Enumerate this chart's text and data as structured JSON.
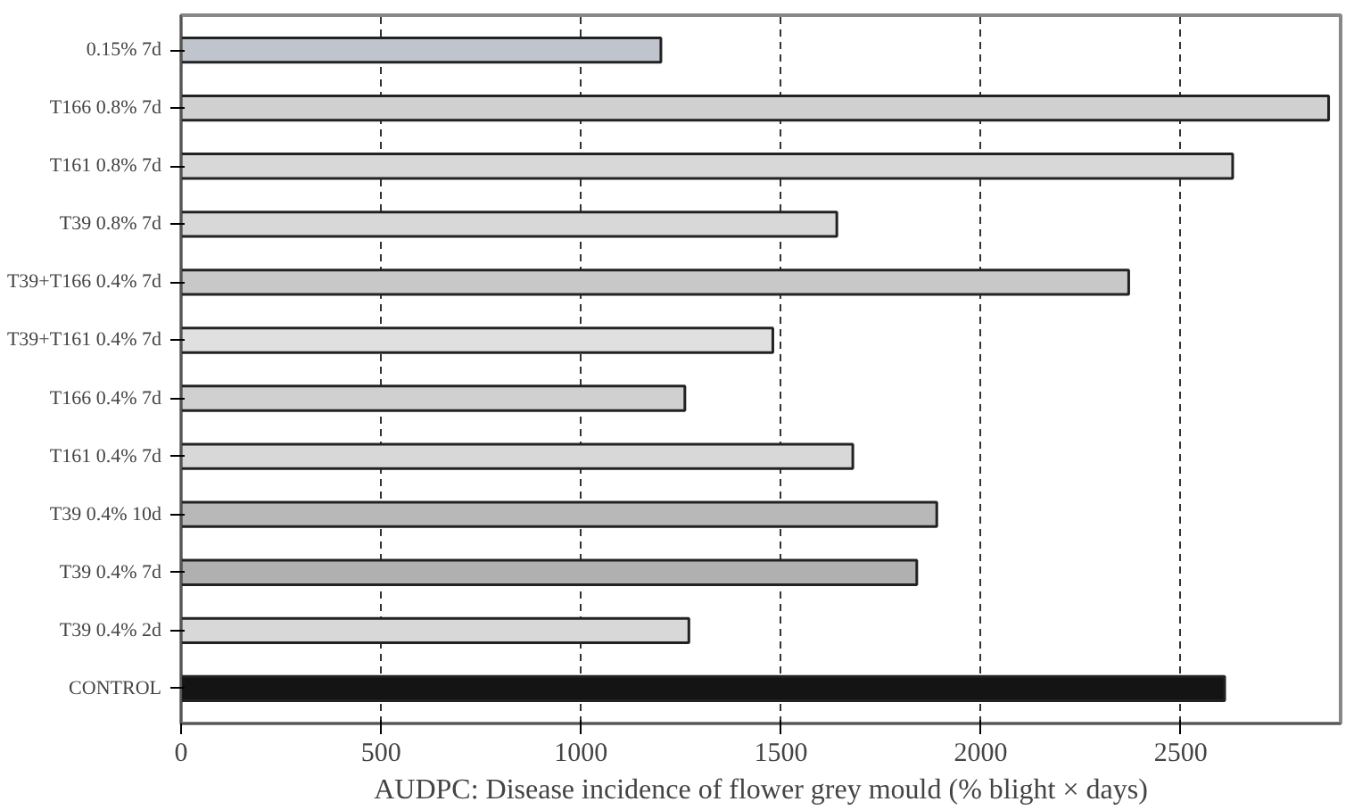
{
  "chart_data": {
    "type": "bar",
    "orientation": "horizontal",
    "xlabel": "AUDPC: Disease incidence of flower grey mould (% blight × days)",
    "categories": [
      "0.15% 7d",
      "T166 0.8% 7d",
      "T161 0.8% 7d",
      "T39 0.8% 7d",
      "T39+T166 0.4% 7d",
      "T39+T161 0.4% 7d",
      "T166 0.4% 7d",
      "T161 0.4% 7d",
      "T39 0.4% 10d",
      "T39 0.4% 7d",
      "T39 0.4% 2d",
      "CONTROL"
    ],
    "values": [
      1200,
      2870,
      2630,
      1640,
      2370,
      1480,
      1260,
      1680,
      1890,
      1840,
      1270,
      2610
    ],
    "colors": [
      "#c0c4cc",
      "#d0d0d0",
      "#d8d8d8",
      "#d8d8d8",
      "#c8c8c8",
      "#e0e0e0",
      "#d0d0d0",
      "#d8d8d8",
      "#b8b8b8",
      "#b0b0b0",
      "#d8d8d8",
      "#141414"
    ],
    "xlim": [
      0,
      2900
    ],
    "xticks": [
      0,
      500,
      1000,
      1500,
      2000,
      2500
    ],
    "grid": "x",
    "line_style": "dashed"
  }
}
